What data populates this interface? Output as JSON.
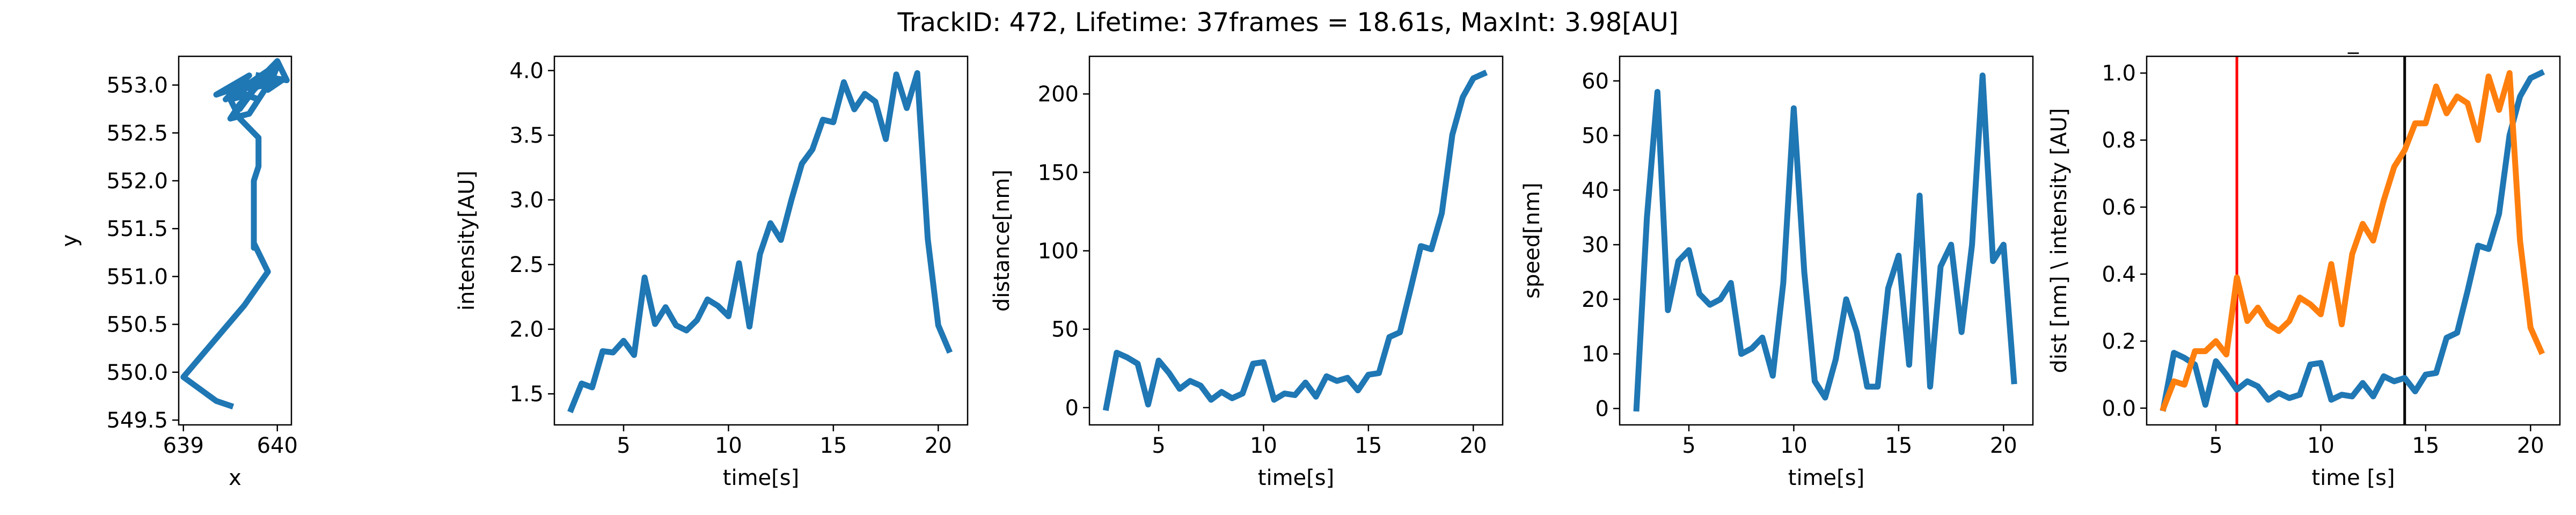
{
  "figure_title": "TrackID: 472, Lifetime: 37frames = 18.61s, MaxInt: 3.98[AU]",
  "colors": {
    "blue": "#1f77b4",
    "orange": "#ff7f0e",
    "red": "#ff0000",
    "black": "#000000"
  },
  "chart_data": [
    {
      "type": "line",
      "xlabel": "x",
      "ylabel": "y",
      "xlim": [
        638.95,
        640.15
      ],
      "ylim": [
        549.45,
        553.3
      ],
      "xticks": [
        639,
        640
      ],
      "yticks": [
        549.5,
        550.0,
        550.5,
        551.0,
        551.5,
        552.0,
        552.5,
        553.0
      ],
      "yticklabels": [
        "549.5",
        "550.0",
        "550.5",
        "551.0",
        "551.5",
        "552.0",
        "552.5",
        "553.0"
      ],
      "series": [
        {
          "color": "#1f77b4",
          "x": [
            639.5,
            639.35,
            639.0,
            639.65,
            639.9,
            639.75,
            639.75,
            639.75,
            639.75,
            639.8,
            639.8,
            639.6,
            639.5,
            639.7,
            639.6,
            639.5,
            639.7,
            639.9,
            639.55,
            639.8,
            639.5,
            639.8,
            639.35,
            639.7,
            639.45,
            639.9,
            639.75,
            639.6,
            639.85,
            639.7,
            640.0,
            639.9,
            640.05,
            639.8,
            640.0,
            640.1,
            639.8
          ],
          "y": [
            549.65,
            549.7,
            549.95,
            550.7,
            551.05,
            551.35,
            551.3,
            551.7,
            552.0,
            552.15,
            552.45,
            552.65,
            552.85,
            552.9,
            552.8,
            552.65,
            552.7,
            553.0,
            552.95,
            552.85,
            552.95,
            553.05,
            552.9,
            553.1,
            552.85,
            553.15,
            552.95,
            552.75,
            553.1,
            552.9,
            553.2,
            552.95,
            553.05,
            553.05,
            553.25,
            553.05,
            553.1
          ]
        }
      ]
    },
    {
      "type": "line",
      "xlabel": "time[s]",
      "ylabel": "intensity[AU]",
      "xlim": [
        1.7,
        21.4
      ],
      "ylim": [
        1.26,
        4.11
      ],
      "xticks": [
        5,
        10,
        15,
        20
      ],
      "yticks": [
        1.5,
        2.0,
        2.5,
        3.0,
        3.5,
        4.0
      ],
      "yticklabels": [
        "1.5",
        "2.0",
        "2.5",
        "3.0",
        "3.5",
        "4.0"
      ],
      "series": [
        {
          "color": "#1f77b4",
          "x": [
            2.5,
            3.0,
            3.5,
            4.0,
            4.5,
            5.0,
            5.5,
            6.0,
            6.5,
            7.0,
            7.5,
            8.0,
            8.5,
            9.0,
            9.5,
            10.0,
            10.5,
            11.0,
            11.5,
            12.0,
            12.5,
            13.0,
            13.5,
            14.0,
            14.5,
            15.0,
            15.5,
            16.0,
            16.5,
            17.0,
            17.5,
            18.0,
            18.5,
            19.0,
            19.5,
            20.0,
            20.5
          ],
          "y": [
            1.38,
            1.58,
            1.55,
            1.83,
            1.82,
            1.91,
            1.8,
            2.4,
            2.04,
            2.17,
            2.03,
            1.99,
            2.07,
            2.23,
            2.18,
            2.1,
            2.51,
            2.02,
            2.58,
            2.82,
            2.69,
            3.0,
            3.28,
            3.39,
            3.62,
            3.6,
            3.91,
            3.7,
            3.82,
            3.76,
            3.47,
            3.97,
            3.71,
            3.98,
            2.7,
            2.03,
            1.84
          ]
        }
      ]
    },
    {
      "type": "line",
      "xlabel": "time[s]",
      "ylabel": "distance[nm]",
      "xlim": [
        1.7,
        21.4
      ],
      "ylim": [
        -11,
        224
      ],
      "xticks": [
        5,
        10,
        15,
        20
      ],
      "yticks": [
        0,
        50,
        100,
        150,
        200
      ],
      "yticklabels": [
        "0",
        "50",
        "100",
        "150",
        "200"
      ],
      "series": [
        {
          "color": "#1f77b4",
          "x": [
            2.5,
            3.0,
            3.5,
            4.0,
            4.5,
            5.0,
            5.5,
            6.0,
            6.5,
            7.0,
            7.5,
            8.0,
            8.5,
            9.0,
            9.5,
            10.0,
            10.5,
            11.0,
            11.5,
            12.0,
            12.5,
            13.0,
            13.5,
            14.0,
            14.5,
            15.0,
            15.5,
            16.0,
            16.5,
            17.0,
            17.5,
            18.0,
            18.5,
            19.0,
            19.5,
            20.0,
            20.5
          ],
          "y": [
            0,
            35,
            32,
            28,
            2,
            30,
            22,
            12,
            17,
            14,
            5,
            10,
            6,
            9,
            28,
            29,
            5,
            9,
            8,
            16,
            7,
            20,
            17,
            19,
            11,
            21,
            22,
            45,
            48,
            75,
            103,
            101,
            124,
            174,
            198,
            210,
            213
          ]
        }
      ]
    },
    {
      "type": "line",
      "xlabel": "time[s]",
      "ylabel": "speed[nm]",
      "xlim": [
        1.7,
        21.4
      ],
      "ylim": [
        -3,
        64.5
      ],
      "xticks": [
        5,
        10,
        15,
        20
      ],
      "yticks": [
        0,
        10,
        20,
        30,
        40,
        50,
        60
      ],
      "yticklabels": [
        "0",
        "10",
        "20",
        "30",
        "40",
        "50",
        "60"
      ],
      "series": [
        {
          "color": "#1f77b4",
          "x": [
            2.5,
            3.0,
            3.5,
            4.0,
            4.5,
            5.0,
            5.5,
            6.0,
            6.5,
            7.0,
            7.5,
            8.0,
            8.5,
            9.0,
            9.5,
            10.0,
            10.5,
            11.0,
            11.5,
            12.0,
            12.5,
            13.0,
            13.5,
            14.0,
            14.5,
            15.0,
            15.5,
            16.0,
            16.5,
            17.0,
            17.5,
            18.0,
            18.5,
            19.0,
            19.5,
            20.0,
            20.5
          ],
          "y": [
            0,
            35,
            58,
            18,
            27,
            29,
            21,
            19,
            20,
            23,
            10,
            11,
            13,
            6,
            23,
            55,
            25,
            5,
            2,
            9,
            20,
            14,
            4,
            4,
            22,
            28,
            8,
            39,
            4,
            26,
            30,
            14,
            30,
            61,
            27,
            30,
            5
          ]
        }
      ]
    },
    {
      "type": "line",
      "title": "_",
      "xlabel": "time [s]",
      "ylabel": "dist [nm] \\ intensity [AU]",
      "xlim": [
        1.7,
        21.4
      ],
      "ylim": [
        -0.05,
        1.05
      ],
      "xticks": [
        5,
        10,
        15,
        20
      ],
      "yticks": [
        0.0,
        0.2,
        0.4,
        0.6,
        0.8,
        1.0
      ],
      "yticklabels": [
        "0.0",
        "0.2",
        "0.4",
        "0.6",
        "0.8",
        "1.0"
      ],
      "vlines": [
        {
          "x": 6.0,
          "color": "#ff0000"
        },
        {
          "x": 14.0,
          "color": "#000000"
        }
      ],
      "series": [
        {
          "color": "#1f77b4",
          "x": [
            2.5,
            3.0,
            3.5,
            4.0,
            4.5,
            5.0,
            5.5,
            6.0,
            6.5,
            7.0,
            7.5,
            8.0,
            8.5,
            9.0,
            9.5,
            10.0,
            10.5,
            11.0,
            11.5,
            12.0,
            12.5,
            13.0,
            13.5,
            14.0,
            14.5,
            15.0,
            15.5,
            16.0,
            16.5,
            17.0,
            17.5,
            18.0,
            18.5,
            19.0,
            19.5,
            20.0,
            20.5
          ],
          "y": [
            0.0,
            0.165,
            0.15,
            0.13,
            0.01,
            0.14,
            0.1,
            0.055,
            0.08,
            0.065,
            0.025,
            0.045,
            0.03,
            0.04,
            0.13,
            0.135,
            0.025,
            0.04,
            0.035,
            0.075,
            0.035,
            0.095,
            0.08,
            0.09,
            0.05,
            0.1,
            0.105,
            0.21,
            0.225,
            0.35,
            0.485,
            0.475,
            0.58,
            0.815,
            0.93,
            0.985,
            1.0
          ]
        },
        {
          "color": "#ff7f0e",
          "x": [
            2.5,
            3.0,
            3.5,
            4.0,
            4.5,
            5.0,
            5.5,
            6.0,
            6.5,
            7.0,
            7.5,
            8.0,
            8.5,
            9.0,
            9.5,
            10.0,
            10.5,
            11.0,
            11.5,
            12.0,
            12.5,
            13.0,
            13.5,
            14.0,
            14.5,
            15.0,
            15.5,
            16.0,
            16.5,
            17.0,
            17.5,
            18.0,
            18.5,
            19.0,
            19.5,
            20.0,
            20.5
          ],
          "y": [
            0.0,
            0.08,
            0.07,
            0.17,
            0.17,
            0.2,
            0.16,
            0.39,
            0.26,
            0.3,
            0.25,
            0.23,
            0.26,
            0.33,
            0.31,
            0.28,
            0.43,
            0.25,
            0.46,
            0.55,
            0.5,
            0.62,
            0.72,
            0.77,
            0.85,
            0.85,
            0.96,
            0.88,
            0.93,
            0.91,
            0.8,
            0.99,
            0.89,
            1.0,
            0.5,
            0.24,
            0.17
          ]
        }
      ]
    }
  ]
}
